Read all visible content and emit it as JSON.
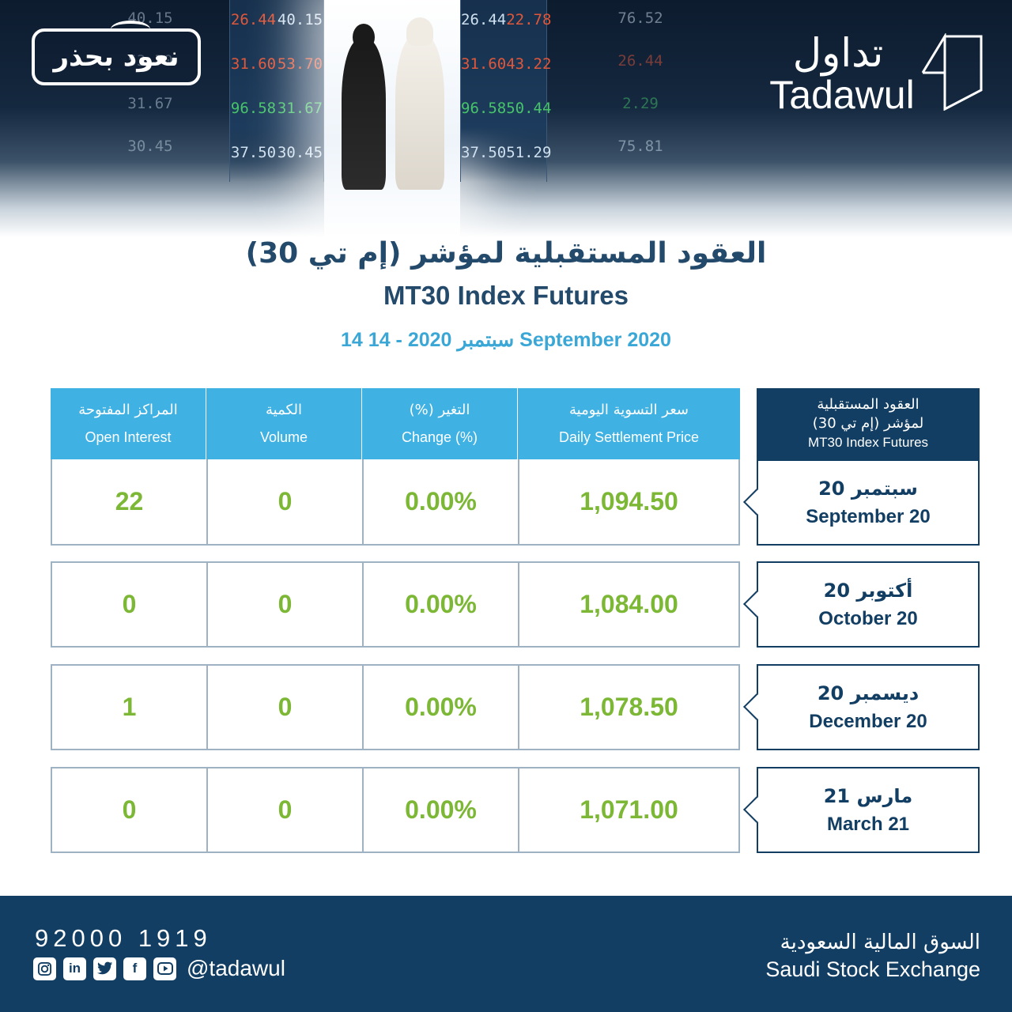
{
  "header": {
    "badge_text": "نعود بحذر",
    "logo": {
      "arabic": "تداول",
      "english": "Tadawul"
    },
    "ticker_left": [
      {
        "a": "26.44",
        "b": "40.15",
        "dir": "down"
      },
      {
        "a": "31.60",
        "b": "53.70",
        "dir": "down"
      },
      {
        "a": "96.58",
        "b": "31.67",
        "dir": "up"
      },
      {
        "a": "37.50",
        "b": "30.45",
        "dir": "up"
      }
    ],
    "ticker_right": [
      {
        "a": "26.44",
        "b": "22.78",
        "dir": "down"
      },
      {
        "a": "31.60",
        "b": "43.22",
        "dir": "down"
      },
      {
        "a": "96.58",
        "b": "50.44",
        "dir": "up"
      },
      {
        "a": "37.50",
        "b": "51.29",
        "dir": "up"
      }
    ],
    "ticker_far_left": [
      {
        "a": "40.15"
      },
      {
        "a": "53.70"
      },
      {
        "a": "31.67"
      },
      {
        "a": "30.45"
      }
    ],
    "ticker_far_right": [
      {
        "a": "76.52"
      },
      {
        "a": "26.44"
      },
      {
        "a": "2.29"
      },
      {
        "a": "75.81"
      }
    ]
  },
  "titles": {
    "arabic": "العقود المستقبلية لمؤشر (إم تي 30)",
    "english": "MT30 Index Futures",
    "date": "14 سبتمبر 2020 - 14 September 2020"
  },
  "table": {
    "corner": {
      "ar_line1": "العقود المستقبلية",
      "ar_line2": "لمؤشر (إم تي 30)",
      "en": "MT30 Index Futures"
    },
    "columns": [
      {
        "ar": "المراكز المفتوحة",
        "en": "Open Interest"
      },
      {
        "ar": "الكمية",
        "en": "Volume"
      },
      {
        "ar": "التغير (%)",
        "en": "Change (%)"
      },
      {
        "ar": "سعر التسوية اليومية",
        "en": "Daily Settlement Price"
      }
    ],
    "rows": [
      {
        "label_ar": "سبتمبر 20",
        "label_en": "September 20",
        "open_interest": "22",
        "volume": "0",
        "change": "0.00%",
        "price": "1,094.50"
      },
      {
        "label_ar": "أكتوبر 20",
        "label_en": "October 20",
        "open_interest": "0",
        "volume": "0",
        "change": "0.00%",
        "price": "1,084.00"
      },
      {
        "label_ar": "ديسمبر 20",
        "label_en": "December 20",
        "open_interest": "1",
        "volume": "0",
        "change": "0.00%",
        "price": "1,078.50"
      },
      {
        "label_ar": "مارس 21",
        "label_en": "March 21",
        "open_interest": "0",
        "volume": "0",
        "change": "0.00%",
        "price": "1,071.00"
      }
    ]
  },
  "footer": {
    "phone": "92000 1919",
    "social_icons": [
      "instagram-icon",
      "linkedin-icon",
      "twitter-icon",
      "facebook-icon",
      "youtube-icon"
    ],
    "handle": "@tadawul",
    "exchange_ar": "السوق المالية السعودية",
    "exchange_en": "Saudi Stock Exchange"
  },
  "colors": {
    "navy": "#123e63",
    "header_blue": "#3fb1e3",
    "value_green": "#7cb735",
    "title_blue": "#244a6b",
    "date_blue": "#3aa7d6"
  }
}
